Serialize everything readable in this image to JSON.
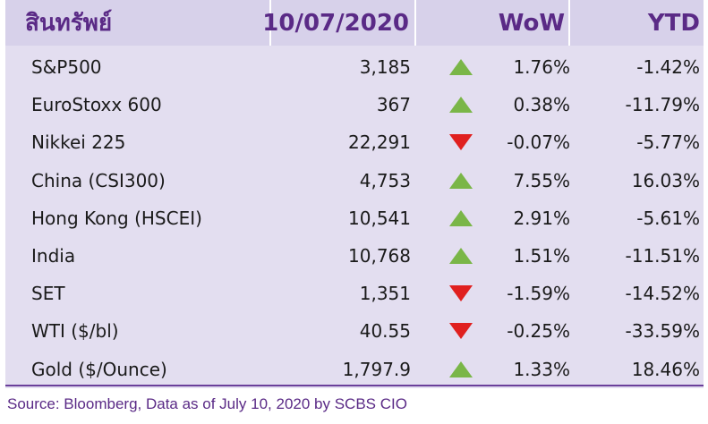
{
  "header": {
    "asset": "สินทรัพย์",
    "date": "10/07/2020",
    "wow": "WoW",
    "ytd": "YTD"
  },
  "colors": {
    "up": "#7ab648",
    "down": "#e0201f",
    "header_bg": "#d7d1ea",
    "body_bg": "#e3def0",
    "accent": "#5a2a86"
  },
  "rows": [
    {
      "name": "S&P500",
      "value": "3,185",
      "direction": "up",
      "wow": "1.76%",
      "ytd": "-1.42%"
    },
    {
      "name": "EuroStoxx 600",
      "value": "367",
      "direction": "up",
      "wow": "0.38%",
      "ytd": "-11.79%"
    },
    {
      "name": "Nikkei 225",
      "value": "22,291",
      "direction": "down",
      "wow": "-0.07%",
      "ytd": "-5.77%"
    },
    {
      "name": "China (CSI300)",
      "value": "4,753",
      "direction": "up",
      "wow": "7.55%",
      "ytd": "16.03%"
    },
    {
      "name": "Hong Kong (HSCEI)",
      "value": "10,541",
      "direction": "up",
      "wow": "2.91%",
      "ytd": "-5.61%"
    },
    {
      "name": "India",
      "value": "10,768",
      "direction": "up",
      "wow": "1.51%",
      "ytd": "-11.51%"
    },
    {
      "name": "SET",
      "value": "1,351",
      "direction": "down",
      "wow": "-1.59%",
      "ytd": "-14.52%"
    },
    {
      "name": "WTI ($/bl)",
      "value": "40.55",
      "direction": "down",
      "wow": "-0.25%",
      "ytd": "-33.59%"
    },
    {
      "name": "Gold ($/Ounce)",
      "value": "1,797.9",
      "direction": "up",
      "wow": "1.33%",
      "ytd": "18.46%"
    }
  ],
  "source": "Source: Bloomberg, Data as of July 10, 2020 by SCBS CIO"
}
